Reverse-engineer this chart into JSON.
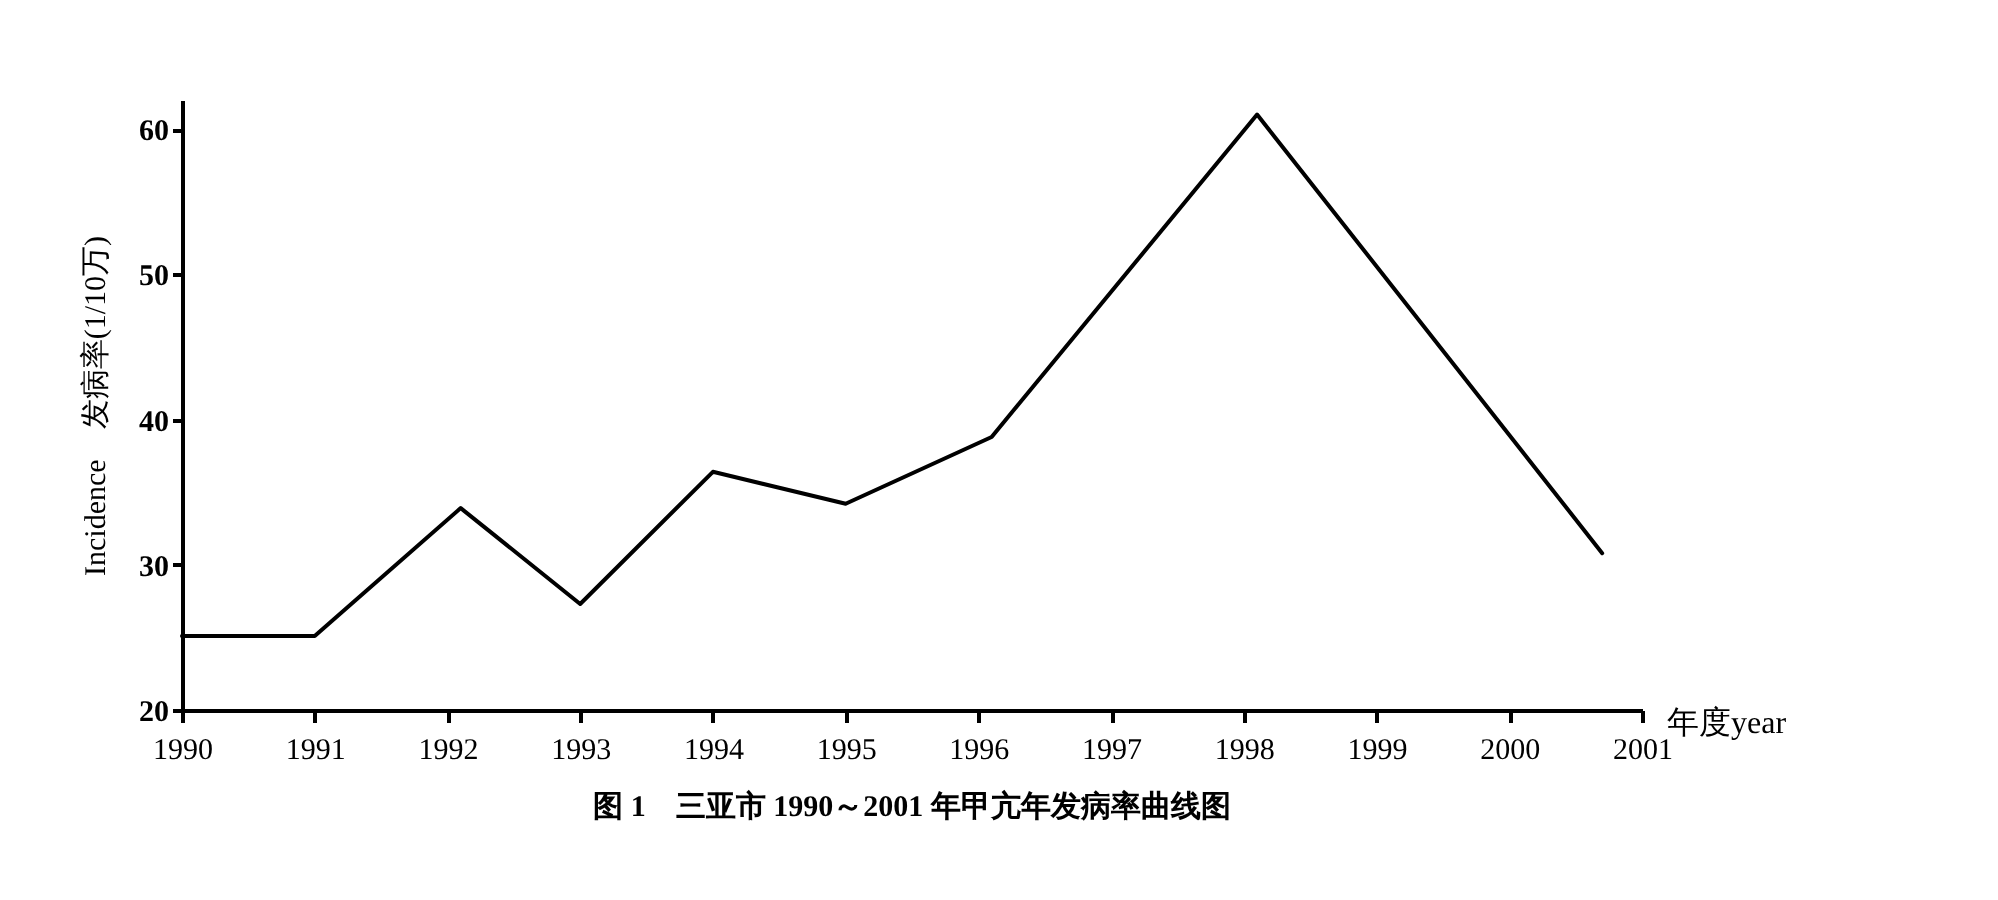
{
  "chart_data": {
    "type": "line",
    "title": "图 1　三亚市 1990～2001 年甲亢年发病率曲线图",
    "xlabel": "年度year",
    "ylabel": "Incidence　发病率(1/10万)",
    "x": [
      1990,
      1991,
      1992.1,
      1993,
      1994,
      1995,
      1996.1,
      1998.1,
      2000.7
    ],
    "series": [
      {
        "color": "#000000",
        "values": [
          25.1,
          25.1,
          33.9,
          27.3,
          36.4,
          34.2,
          38.8,
          61,
          30.8
        ]
      }
    ],
    "xlim": [
      1990,
      2001
    ],
    "xticks": [
      1990,
      1991,
      1992,
      1993,
      1994,
      1995,
      1996,
      1997,
      1998,
      1999,
      2000,
      2001
    ],
    "ylim": [
      20,
      62
    ],
    "yticks": [
      20,
      30,
      40,
      50,
      60
    ],
    "grid": false,
    "marker": "none",
    "line_style": "solid"
  }
}
